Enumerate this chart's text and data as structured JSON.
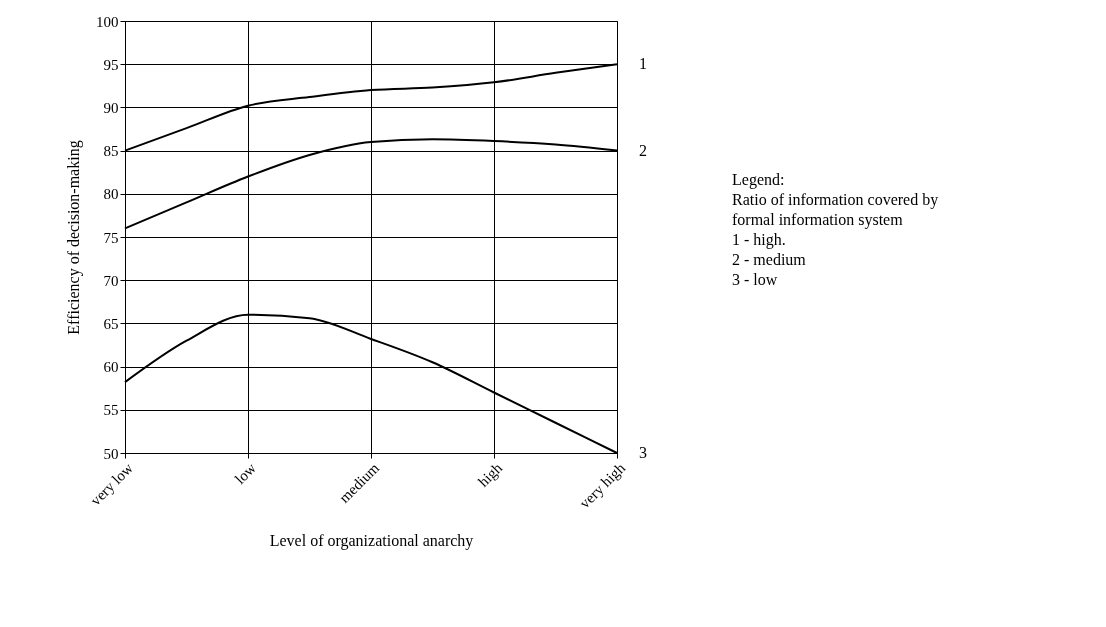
{
  "chart_data": {
    "type": "line",
    "xlabel": "Level of organizational anarchy",
    "ylabel": "Efficiency of decision-making",
    "categories": [
      "very low",
      null,
      "low",
      null,
      "medium",
      null,
      "high",
      null,
      "very high"
    ],
    "ylim": [
      50,
      100
    ],
    "yticks": [
      50,
      55,
      60,
      65,
      70,
      75,
      80,
      85,
      90,
      95,
      100
    ],
    "grid": true,
    "legend": false,
    "marker": "none",
    "line_style": "solid",
    "series": [
      {
        "name": "1",
        "color": "#000000",
        "values": [
          85,
          87.6,
          90.2,
          91.2,
          92,
          92.3,
          92.9,
          94,
          95
        ]
      },
      {
        "name": "2",
        "color": "#000000",
        "values": [
          76,
          79,
          82,
          84.5,
          86,
          86.3,
          86.1,
          85.7,
          85
        ]
      },
      {
        "name": "3",
        "color": "#000000",
        "values": [
          58.2,
          63,
          66,
          65.6,
          63.2,
          60.5,
          57,
          53.5,
          50
        ]
      }
    ],
    "annotations": [
      "Legend:",
      "Ratio of information covered by formal information system",
      "1 - high.",
      "2 - medium",
      "3 - low"
    ]
  }
}
